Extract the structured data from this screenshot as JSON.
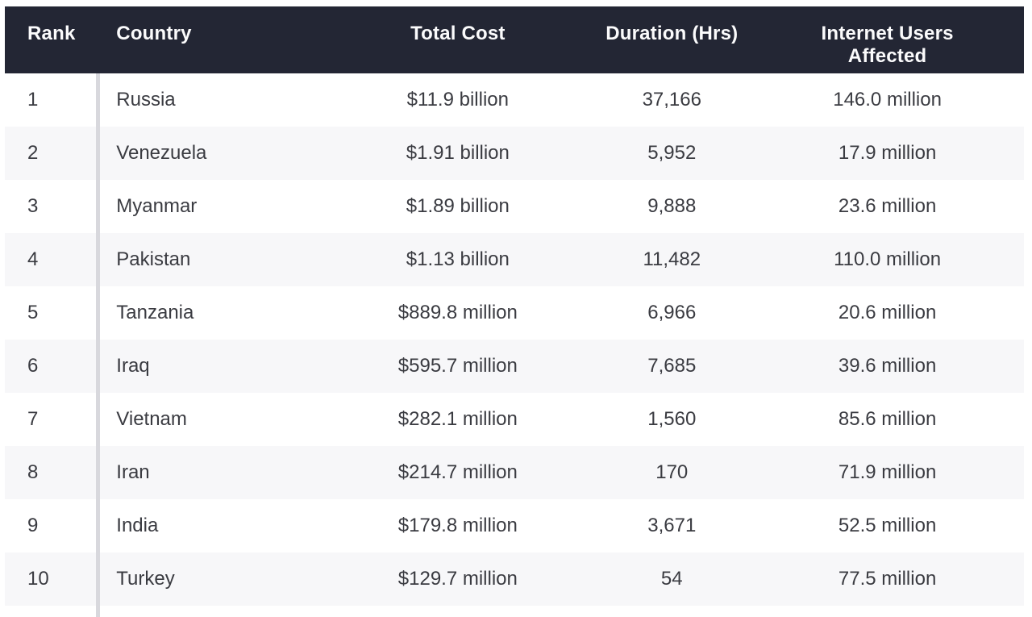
{
  "table": {
    "columns": [
      {
        "key": "rank",
        "label": "Rank"
      },
      {
        "key": "country",
        "label": "Country"
      },
      {
        "key": "cost",
        "label": "Total Cost"
      },
      {
        "key": "duration",
        "label": "Duration (Hrs)"
      },
      {
        "key": "users",
        "label": "Internet Users Affected"
      }
    ],
    "rows": [
      {
        "rank": "1",
        "country": "Russia",
        "cost": "$11.9 billion",
        "duration": "37,166",
        "users": "146.0 million"
      },
      {
        "rank": "2",
        "country": "Venezuela",
        "cost": "$1.91 billion",
        "duration": "5,952",
        "users": "17.9 million"
      },
      {
        "rank": "3",
        "country": "Myanmar",
        "cost": "$1.89 billion",
        "duration": "9,888",
        "users": "23.6 million"
      },
      {
        "rank": "4",
        "country": "Pakistan",
        "cost": "$1.13 billion",
        "duration": "11,482",
        "users": "110.0 million"
      },
      {
        "rank": "5",
        "country": "Tanzania",
        "cost": "$889.8 million",
        "duration": "6,966",
        "users": "20.6 million"
      },
      {
        "rank": "6",
        "country": "Iraq",
        "cost": "$595.7 million",
        "duration": "7,685",
        "users": "39.6 million"
      },
      {
        "rank": "7",
        "country": "Vietnam",
        "cost": "$282.1 million",
        "duration": "1,560",
        "users": "85.6 million"
      },
      {
        "rank": "8",
        "country": "Iran",
        "cost": "$214.7 million",
        "duration": "170",
        "users": "71.9 million"
      },
      {
        "rank": "9",
        "country": "India",
        "cost": "$179.8 million",
        "duration": "3,671",
        "users": "52.5 million"
      },
      {
        "rank": "10",
        "country": "Turkey",
        "cost": "$129.7 million",
        "duration": "54",
        "users": "77.5 million"
      }
    ]
  },
  "chart_data": {
    "type": "table",
    "columns": [
      "Rank",
      "Country",
      "Total Cost",
      "Duration (Hrs)",
      "Internet Users Affected"
    ],
    "rows": [
      [
        "1",
        "Russia",
        "$11.9 billion",
        "37,166",
        "146.0 million"
      ],
      [
        "2",
        "Venezuela",
        "$1.91 billion",
        "5,952",
        "17.9 million"
      ],
      [
        "3",
        "Myanmar",
        "$1.89 billion",
        "9,888",
        "23.6 million"
      ],
      [
        "4",
        "Pakistan",
        "$1.13 billion",
        "11,482",
        "110.0 million"
      ],
      [
        "5",
        "Tanzania",
        "$889.8 million",
        "6,966",
        "20.6 million"
      ],
      [
        "6",
        "Iraq",
        "$595.7 million",
        "7,685",
        "39.6 million"
      ],
      [
        "7",
        "Vietnam",
        "$282.1 million",
        "1,560",
        "85.6 million"
      ],
      [
        "8",
        "Iran",
        "$214.7 million",
        "170",
        "71.9 million"
      ],
      [
        "9",
        "India",
        "$179.8 million",
        "3,671",
        "52.5 million"
      ],
      [
        "10",
        "Turkey",
        "$129.7 million",
        "54",
        "77.5 million"
      ]
    ]
  },
  "colors": {
    "header_bg": "#232634",
    "header_text": "#fbfbfc",
    "row_alt_bg": "#f7f7f9",
    "body_text": "#3a3b41",
    "rank_divider": "#d8d8dd"
  }
}
